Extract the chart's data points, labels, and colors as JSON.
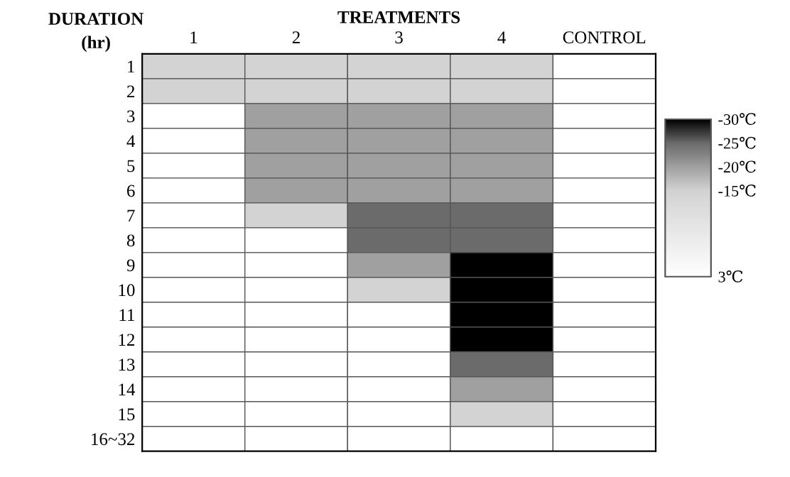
{
  "chart_data": {
    "type": "heatmap",
    "xlabel": "TREATMENTS",
    "ylabel": "DURATION\n(hr)",
    "categories": [
      "1",
      "2",
      "3",
      "4",
      "CONTROL"
    ],
    "y_categories": [
      "1",
      "2",
      "3",
      "4",
      "5",
      "6",
      "7",
      "8",
      "9",
      "10",
      "11",
      "12",
      "13",
      "14",
      "15",
      "16~32"
    ],
    "cells": [
      [
        -15,
        -15,
        -15,
        -15,
        3
      ],
      [
        -15,
        -15,
        -15,
        -15,
        3
      ],
      [
        3,
        -20,
        -20,
        -20,
        3
      ],
      [
        3,
        -20,
        -20,
        -20,
        3
      ],
      [
        3,
        -20,
        -20,
        -20,
        3
      ],
      [
        3,
        -20,
        -20,
        -20,
        3
      ],
      [
        3,
        -15,
        -25,
        -25,
        3
      ],
      [
        3,
        3,
        -25,
        -25,
        3
      ],
      [
        3,
        3,
        -20,
        -30,
        3
      ],
      [
        3,
        3,
        -15,
        -30,
        3
      ],
      [
        3,
        3,
        3,
        -30,
        3
      ],
      [
        3,
        3,
        3,
        -30,
        3
      ],
      [
        3,
        3,
        3,
        -25,
        3
      ],
      [
        3,
        3,
        3,
        -20,
        3
      ],
      [
        3,
        3,
        3,
        -15,
        3
      ],
      [
        3,
        3,
        3,
        3,
        3
      ]
    ],
    "clim": [
      -30,
      3
    ],
    "cticks": [
      {
        "value": -30,
        "label": "-30℃"
      },
      {
        "value": -25,
        "label": "-25℃"
      },
      {
        "value": -20,
        "label": "-20℃"
      },
      {
        "value": -15,
        "label": "-15℃"
      },
      {
        "value": 3,
        "label": "3℃"
      }
    ],
    "colors": [
      "#000000",
      "#6b6b6b",
      "#a0a0a0",
      "#d3d3d3",
      "#ffffff"
    ]
  }
}
